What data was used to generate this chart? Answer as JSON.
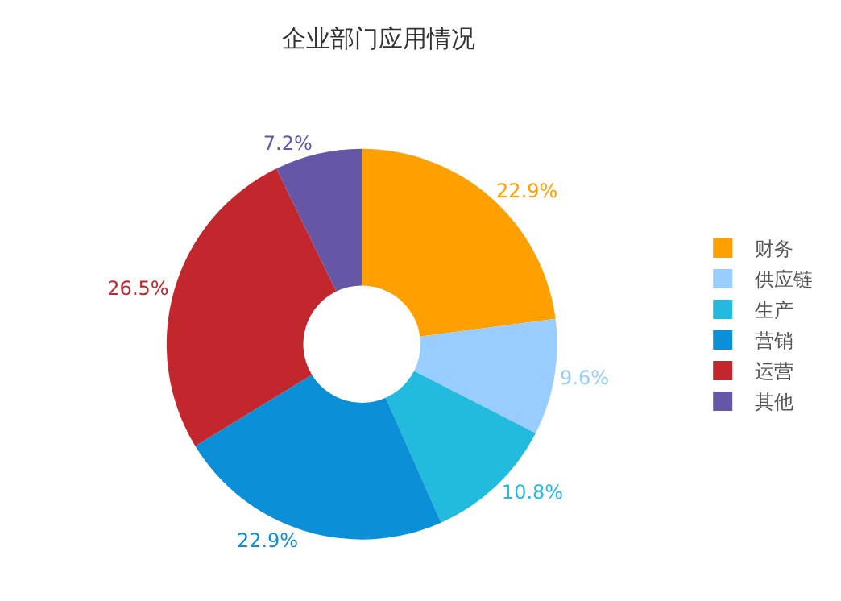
{
  "chart_data": {
    "type": "donut",
    "title": "企业部门应用情况",
    "categories": [
      "财务",
      "供应链",
      "生产",
      "营销",
      "运营",
      "其他"
    ],
    "values": [
      22.9,
      9.6,
      10.8,
      22.9,
      26.5,
      7.2
    ],
    "colors": [
      "#ff9f00",
      "#99ccff",
      "#22bbdd",
      "#0b8fd6",
      "#c1272d",
      "#6656a6"
    ],
    "value_labels": [
      "22.9%",
      "9.6%",
      "10.8%",
      "22.9%",
      "26.5%",
      "7.2%"
    ],
    "legend": "right"
  }
}
